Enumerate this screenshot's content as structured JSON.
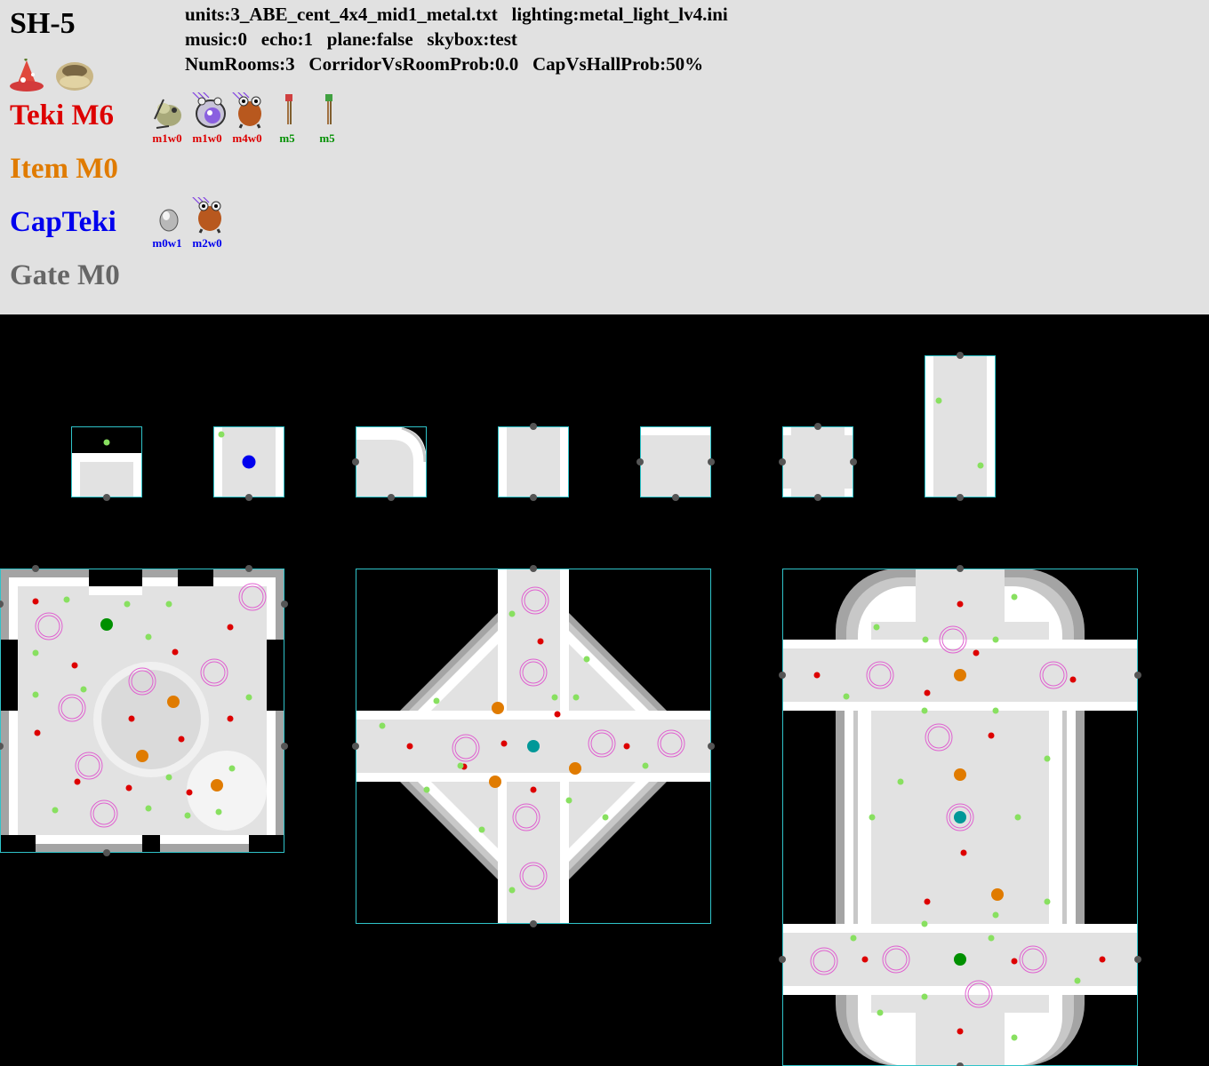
{
  "header": {
    "sublevel": "SH-5",
    "info_line1": "units:3_ABE_cent_4x4_mid1_metal.txt   lighting:metal_light_lv4.ini",
    "info_line2": "music:0   echo:1   plane:false   skybox:test",
    "info_line3": "NumRooms:3   CorridorVsRoomProb:0.0   CapVsHallProb:50%"
  },
  "categories": {
    "teki": {
      "label": "Teki M6",
      "color": "#dd0000"
    },
    "item": {
      "label": "Item M0",
      "color": "#e07b00"
    },
    "capteki": {
      "label": "CapTeki",
      "color": "#0000ee"
    },
    "gate": {
      "label": "Gate M0",
      "color": "#666666"
    }
  },
  "treasure_icons": [
    "spicy-bomb-treasure-icon",
    "bowl-treasure-icon"
  ],
  "teki_entries": [
    {
      "icon": "mamuta-icon",
      "label": "m1w0",
      "falling": false
    },
    {
      "icon": "wollyhop-icon",
      "label": "m1w0",
      "falling": true
    },
    {
      "icon": "fire-dwarf-bulborb-icon",
      "label": "m4w0",
      "falling": true
    },
    {
      "icon": "red-flower-stalk-icon",
      "label": "m5",
      "falling": false
    },
    {
      "icon": "green-flower-stalk-icon",
      "label": "m5",
      "falling": false
    }
  ],
  "capteki_entries": [
    {
      "icon": "egg-icon",
      "label": "m0w1",
      "falling": false
    },
    {
      "icon": "fire-dwarf-bulborb-icon",
      "label": "m2w0",
      "falling": true
    }
  ],
  "colors": {
    "floor": "#e2e2e2",
    "wall": "#ffffff",
    "edge_gray": "#a4a4a4",
    "unit_border": "#2fc3c9",
    "door": "#555555",
    "teki_spawn": "#dd0000",
    "item_spawn": "#e07b00",
    "cap_spawn": "#0000ee",
    "plant_spawn": "#88e060",
    "special_spawn": "#009000",
    "hole_spawn": "#009898",
    "falling_ring": "#e060d0"
  }
}
